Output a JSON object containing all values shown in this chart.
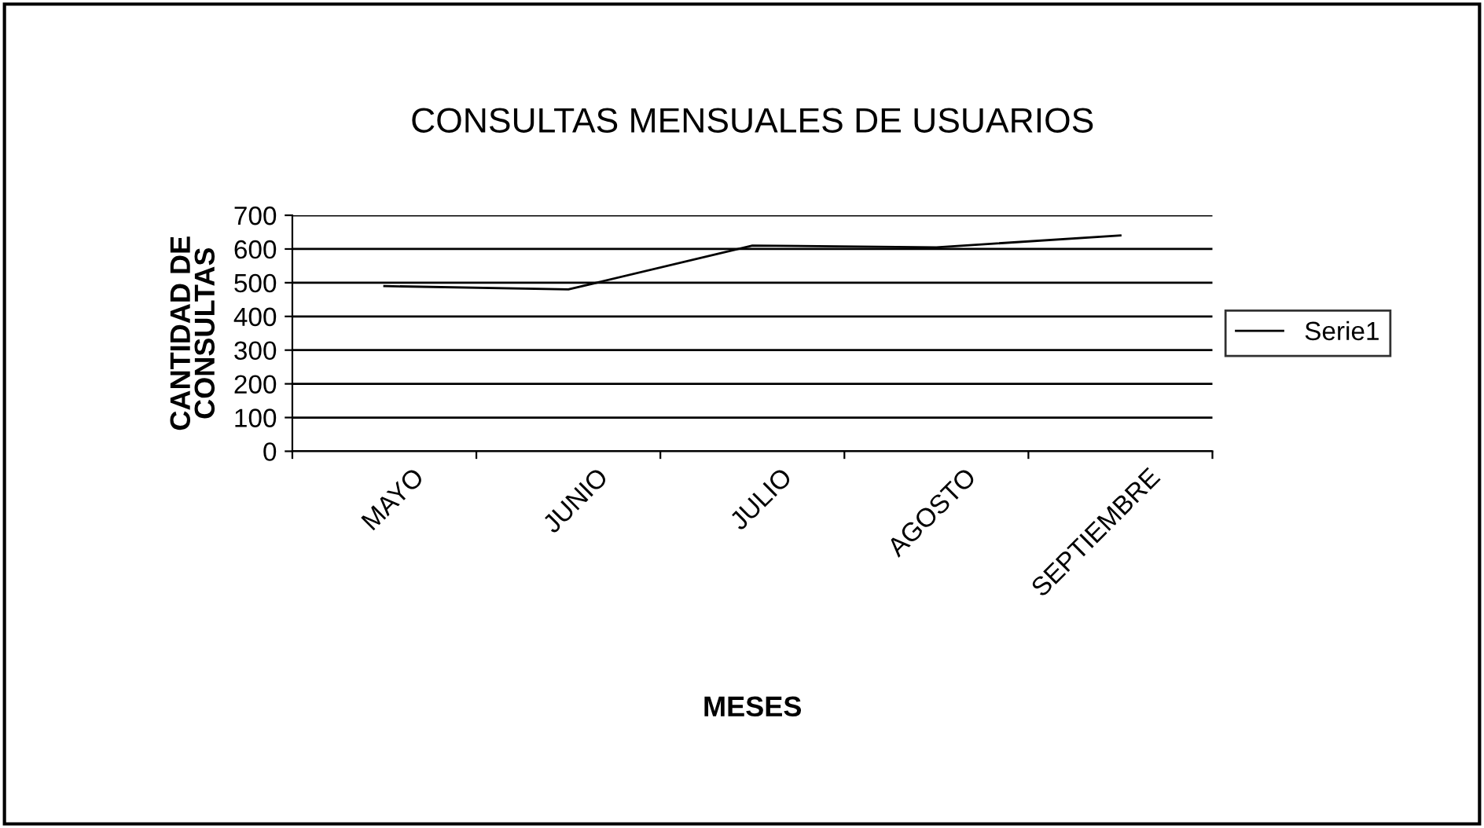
{
  "chart_data": {
    "type": "line",
    "title": "CONSULTAS MENSUALES DE USUARIOS",
    "xlabel": "MESES",
    "ylabel": "CANTIDAD DE\nCONSULTAS",
    "categories": [
      "MAYO",
      "JUNIO",
      "JULIO",
      "AGOSTO",
      "SEPTIEMBRE"
    ],
    "series": [
      {
        "name": "Serie1",
        "color": "#000000",
        "values": [
          490,
          480,
          610,
          605,
          640
        ]
      }
    ],
    "ylim": [
      0,
      700
    ],
    "yticks": [
      0,
      100,
      200,
      300,
      400,
      500,
      600,
      700
    ],
    "grid": "y",
    "legend": "right",
    "marker": "none",
    "line_style": "solid"
  }
}
